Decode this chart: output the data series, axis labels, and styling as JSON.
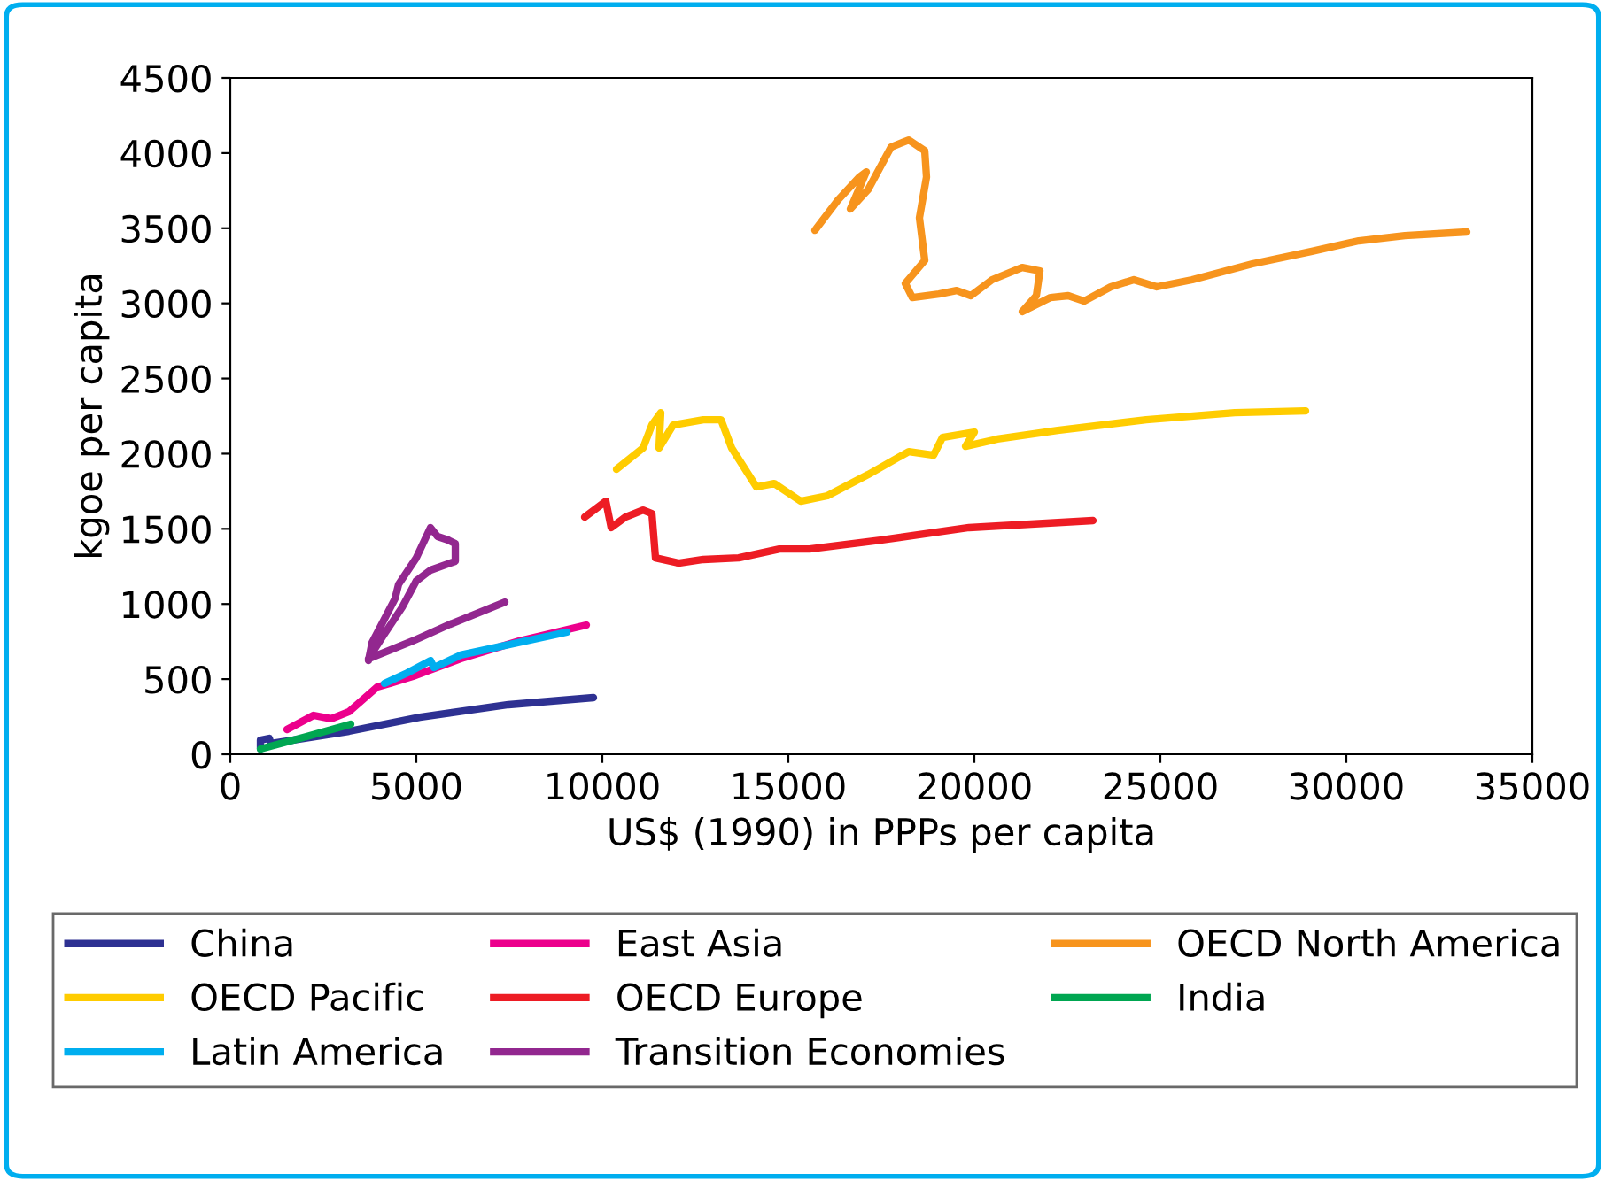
{
  "chart_data": {
    "type": "line",
    "xlabel": "US$ (1990) in PPPs per capita",
    "ylabel": "kgoe per capita",
    "xlim": [
      0,
      35000
    ],
    "xticks": [
      0,
      5000,
      10000,
      15000,
      20000,
      25000,
      30000,
      35000
    ],
    "ylim": [
      0,
      4500
    ],
    "yticks": [
      0,
      500,
      1000,
      1500,
      2000,
      2500,
      3000,
      3500,
      4000,
      4500
    ],
    "grid": false,
    "legend": "bottom",
    "marker": "none",
    "line_style": "solid",
    "series": [
      {
        "name": "China",
        "color": "#2e3192",
        "x": [
          810,
          810,
          1048,
          1095,
          3190,
          5095,
          7476,
          9762
        ],
        "values": [
          35,
          94,
          106,
          71,
          153,
          247,
          330,
          377
        ]
      },
      {
        "name": "East Asia",
        "color": "#ec008c",
        "x": [
          1524,
          2238,
          2714,
          3190,
          3952,
          4286,
          4905,
          6190,
          7762,
          9571
        ],
        "values": [
          165,
          259,
          236,
          283,
          448,
          471,
          518,
          636,
          754,
          860
        ]
      },
      {
        "name": "OECD North America",
        "color": "#f7941d",
        "x": [
          15714,
          16333,
          16905,
          17095,
          16667,
          17143,
          17762,
          18238,
          18667,
          18714,
          18524,
          18667,
          18143,
          18333,
          19048,
          19524,
          19905,
          20476,
          21286,
          21762,
          21667,
          21286,
          22048,
          22524,
          22952,
          23667,
          24286,
          24905,
          25857,
          27476,
          29048,
          30333,
          31571,
          33238
        ],
        "values": [
          3486,
          3687,
          3840,
          3875,
          3628,
          3757,
          4040,
          4087,
          4016,
          3840,
          3569,
          3286,
          3133,
          3039,
          3062,
          3086,
          3051,
          3157,
          3239,
          3216,
          3051,
          2945,
          3039,
          3051,
          3015,
          3110,
          3157,
          3110,
          3157,
          3263,
          3345,
          3416,
          3451,
          3475
        ]
      },
      {
        "name": "OECD Pacific",
        "color": "#ffcc00",
        "x": [
          10381,
          11095,
          11333,
          11571,
          11524,
          11905,
          12714,
          13190,
          13476,
          14143,
          14619,
          15333,
          16048,
          17143,
          18238,
          18905,
          19143,
          20000,
          19762,
          20619,
          22238,
          24619,
          27000,
          28905
        ],
        "values": [
          1896,
          2038,
          2191,
          2273,
          2038,
          2191,
          2226,
          2226,
          2038,
          1779,
          1802,
          1684,
          1720,
          1861,
          2014,
          1990,
          2108,
          2144,
          2049,
          2097,
          2155,
          2226,
          2273,
          2285
        ]
      },
      {
        "name": "OECD Europe",
        "color": "#ed1c24",
        "x": [
          9524,
          10095,
          10238,
          10619,
          11095,
          11333,
          11429,
          12048,
          12714,
          13667,
          14762,
          15571,
          17476,
          19857,
          23190
        ],
        "values": [
          1578,
          1684,
          1508,
          1578,
          1625,
          1602,
          1307,
          1272,
          1296,
          1307,
          1366,
          1366,
          1425,
          1508,
          1555
        ]
      },
      {
        "name": "India",
        "color": "#00a651",
        "x": [
          810,
          2048,
          3238
        ],
        "values": [
          35,
          118,
          200
        ]
      },
      {
        "name": "Latin America",
        "color": "#00aeef",
        "x": [
          4143,
          4762,
          5381,
          5476,
          6190,
          9048
        ],
        "values": [
          471,
          542,
          624,
          577,
          660,
          813
        ]
      },
      {
        "name": "Transition Economies",
        "color": "#92278f",
        "x": [
          3714,
          3810,
          4429,
          4524,
          5000,
          5381,
          5571,
          5857,
          6048,
          6048,
          5381,
          5000,
          4619,
          4143,
          3714,
          4905,
          5857,
          7381
        ],
        "values": [
          624,
          742,
          1036,
          1131,
          1307,
          1508,
          1449,
          1425,
          1402,
          1284,
          1225,
          1154,
          978,
          801,
          636,
          754,
          860,
          1013
        ]
      }
    ]
  }
}
